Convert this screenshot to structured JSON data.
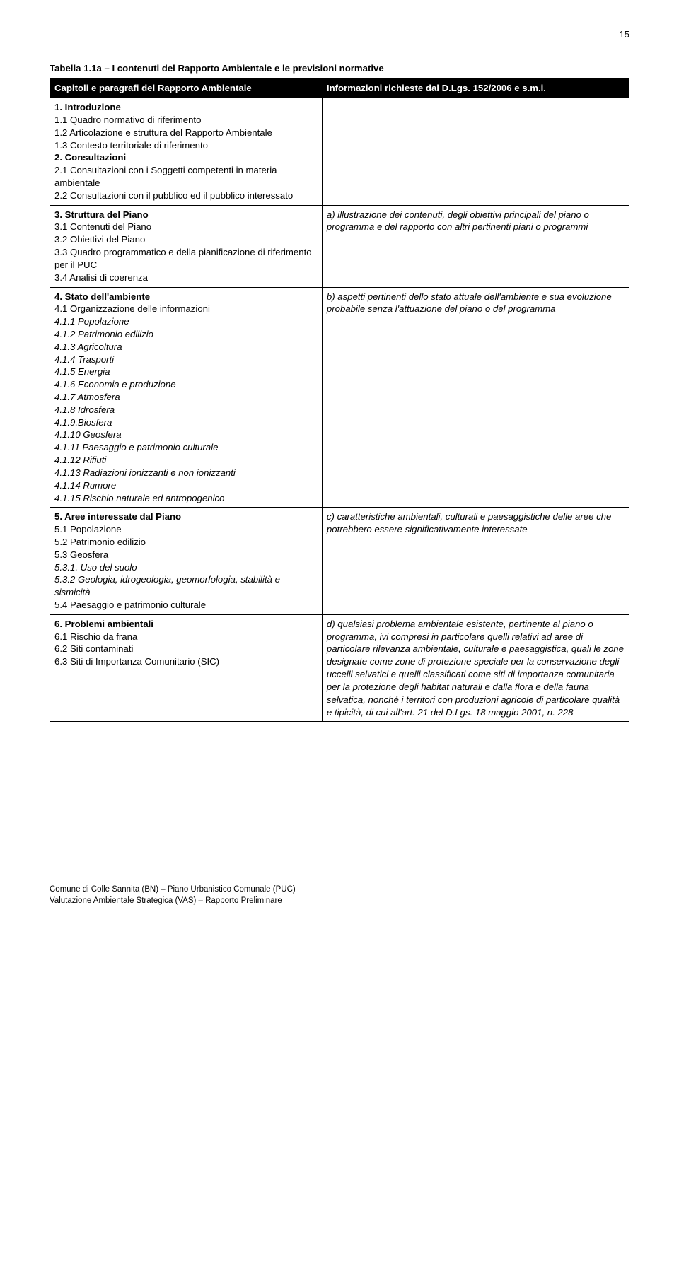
{
  "page_number": "15",
  "table_title": "Tabella 1.1a – I contenuti del Rapporto Ambientale e le previsioni normative",
  "header_left": "Capitoli e paragrafi del Rapporto Ambientale",
  "header_right": "Informazioni richieste dal D.Lgs. 152/2006 e s.m.i.",
  "r1": {
    "h1": "1. Introduzione",
    "l1": "1.1 Quadro normativo di riferimento",
    "l2": "1.2 Articolazione e struttura del Rapporto Ambientale",
    "l3": "1.3 Contesto territoriale di riferimento",
    "h2": "2. Consultazioni",
    "l4": "2.1 Consultazioni con i Soggetti competenti in materia ambientale",
    "l5": "2.2 Consultazioni con il pubblico ed il pubblico interessato"
  },
  "r2": {
    "h": "3. Struttura del Piano",
    "l1": "3.1 Contenuti del Piano",
    "l2": "3.2 Obiettivi del Piano",
    "l3": "3.3 Quadro programmatico e della pianificazione di riferimento per il PUC",
    "l4": "3.4 Analisi di coerenza",
    "right": "a) illustrazione dei contenuti, degli obiettivi principali del piano o programma e del rapporto con altri pertinenti piani o programmi"
  },
  "r3": {
    "h": "4. Stato dell'ambiente",
    "l1": "4.1 Organizzazione delle informazioni",
    "i1": "4.1.1 Popolazione",
    "i2": "4.1.2 Patrimonio edilizio",
    "i3": "4.1.3 Agricoltura",
    "i4": "4.1.4 Trasporti",
    "i5": "4.1.5 Energia",
    "i6": "4.1.6 Economia e produzione",
    "i7": "4.1.7 Atmosfera",
    "i8": "4.1.8 Idrosfera",
    "i9": "4.1.9.Biosfera",
    "i10": "4.1.10 Geosfera",
    "i11": "4.1.11 Paesaggio e patrimonio culturale",
    "i12": "4.1.12 Rifiuti",
    "i13": "4.1.13 Radiazioni ionizzanti e non ionizzanti",
    "i14": "4.1.14 Rumore",
    "i15": "4.1.15 Rischio naturale ed antropogenico",
    "right": "b) aspetti pertinenti dello stato attuale dell'ambiente e sua evoluzione probabile senza l'attuazione del piano o del programma"
  },
  "r4": {
    "h": "5. Aree interessate dal Piano",
    "l1": "5.1 Popolazione",
    "l2": "5.2 Patrimonio edilizio",
    "l3": "5.3 Geosfera",
    "i1": "5.3.1. Uso del suolo",
    "i2": "5.3.2 Geologia, idrogeologia, geomorfologia, stabilità e sismicità",
    "l4": "5.4 Paesaggio e patrimonio culturale",
    "right": "c) caratteristiche ambientali, culturali e paesaggistiche delle aree che potrebbero essere significativamente interessate"
  },
  "r5": {
    "h": "6. Problemi ambientali",
    "l1": "6.1 Rischio da frana",
    "l2": "6.2 Siti contaminati",
    "l3": "6.3 Siti di Importanza Comunitario (SIC)",
    "right": "d) qualsiasi problema ambientale esistente, pertinente al piano o programma, ivi compresi in particolare quelli relativi ad aree di particolare rilevanza ambientale, culturale e paesaggistica, quali le zone designate come zone di protezione speciale per la conservazione degli uccelli selvatici e quelli classificati come siti di importanza comunitaria per la protezione degli habitat naturali e dalla flora e della fauna selvatica, nonché i territori con produzioni agricole di particolare qualità e tipicità, di cui all'art. 21 del D.Lgs. 18 maggio 2001, n. 228"
  },
  "footer_line1": "Comune di Colle Sannita (BN) – Piano Urbanistico Comunale (PUC)",
  "footer_line2": "Valutazione Ambientale Strategica (VAS) – Rapporto Preliminare"
}
